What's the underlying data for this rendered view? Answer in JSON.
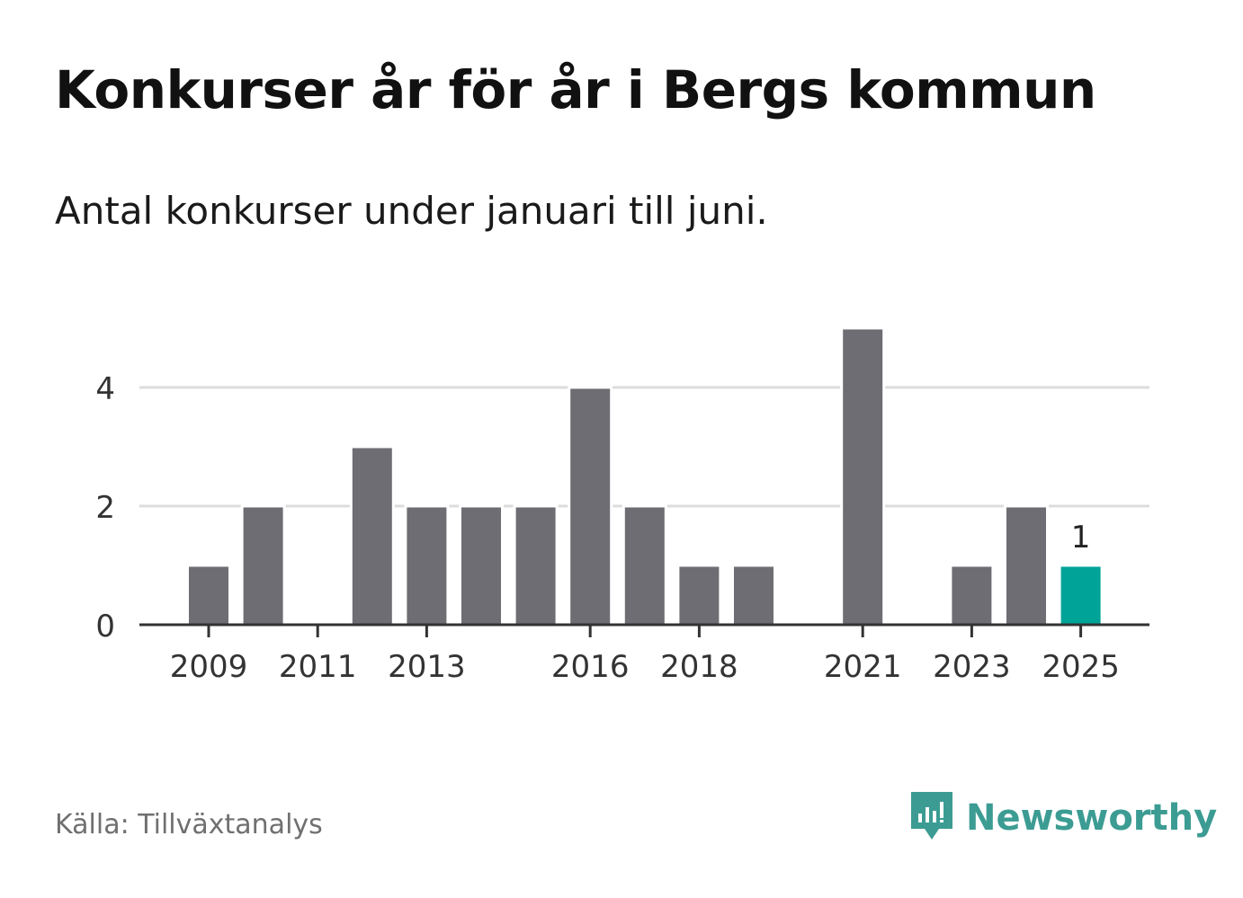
{
  "title": "Konkurser år för år i Bergs kommun",
  "subtitle": "Antal konkurser under januari till juni.",
  "source": "Källa: Tillväxtanalys",
  "brand": {
    "name": "Newsworthy",
    "icon": "newsworthy-logo-icon",
    "color": "#3c9c93"
  },
  "chart_data": {
    "type": "bar",
    "categories": [
      "2009",
      "2010",
      "2011",
      "2012",
      "2013",
      "2014",
      "2015",
      "2016",
      "2017",
      "2018",
      "2019",
      "2020",
      "2021",
      "2022",
      "2023",
      "2024",
      "2025"
    ],
    "values": [
      1,
      2,
      0,
      3,
      2,
      2,
      2,
      4,
      2,
      1,
      1,
      0,
      5,
      0,
      1,
      2,
      1
    ],
    "xticks": [
      "2009",
      "2011",
      "2013",
      "2016",
      "2018",
      "2021",
      "2023",
      "2025"
    ],
    "yticks": [
      0,
      2,
      4
    ],
    "ylim": [
      0,
      5.2
    ],
    "bar_color": "#6e6d73",
    "highlight": {
      "category": "2025",
      "color": "#00a398",
      "label": "1"
    },
    "grid": true
  }
}
